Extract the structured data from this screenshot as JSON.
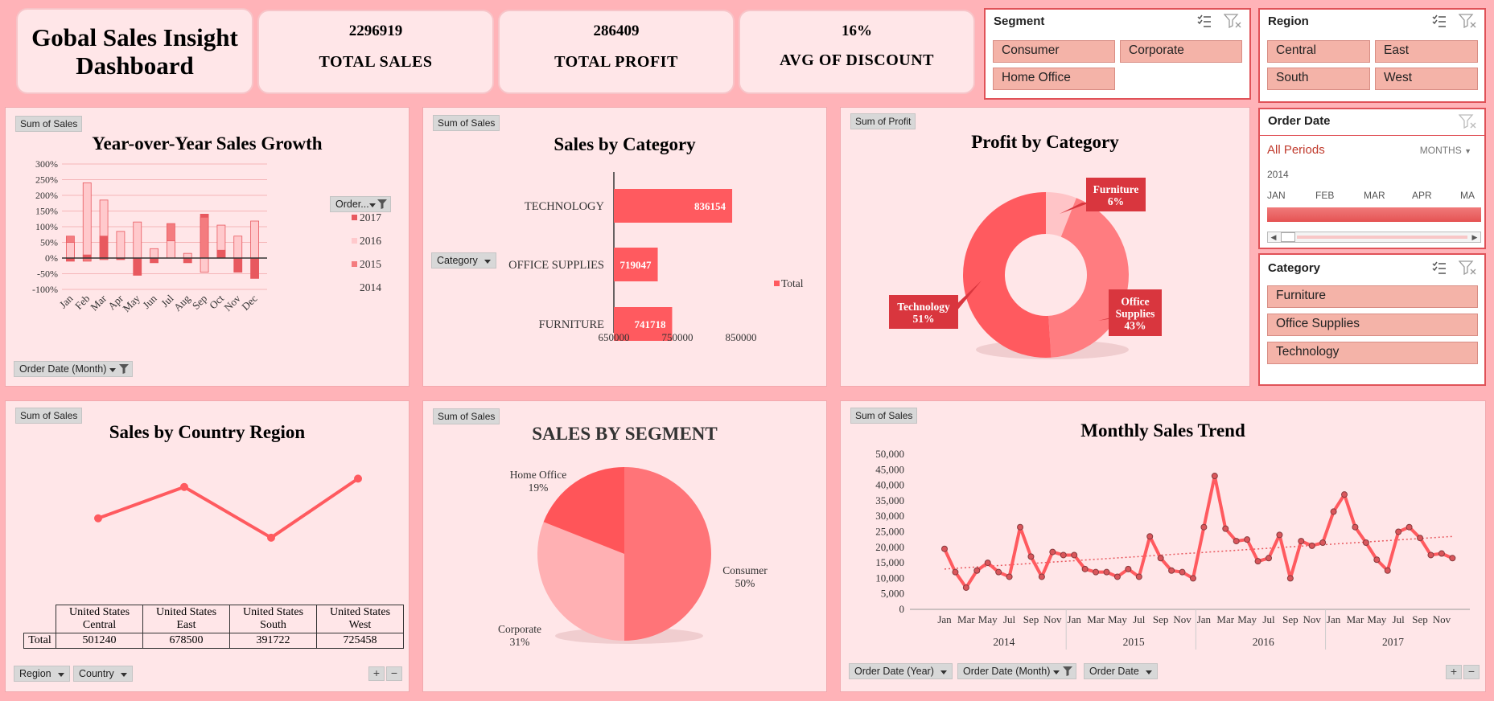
{
  "header": {
    "title_line1": "Gobal Sales Insight",
    "title_line2": "Dashboard",
    "kpis": [
      {
        "value": "2296919",
        "label": "TOTAL SALES"
      },
      {
        "value": "286409",
        "label": "TOTAL PROFIT"
      },
      {
        "value": "16%",
        "label": "AVG OF DISCOUNT"
      }
    ]
  },
  "slicers": {
    "segment": {
      "title": "Segment",
      "items": [
        "Consumer",
        "Corporate",
        "Home Office"
      ]
    },
    "region": {
      "title": "Region",
      "items": [
        "Central",
        "East",
        "South",
        "West"
      ]
    },
    "order_date": {
      "title": "Order Date",
      "period": "All Periods",
      "unit": "MONTHS",
      "year": "2014",
      "months": [
        "JAN",
        "FEB",
        "MAR",
        "APR",
        "MA"
      ]
    },
    "category": {
      "title": "Category",
      "items": [
        "Furniture",
        "Office Supplies",
        "Technology"
      ]
    }
  },
  "chips": {
    "sum_sales": "Sum of Sales",
    "sum_profit": "Sum of Profit"
  },
  "filters": {
    "order_month_legend": "Order...",
    "order_date_month": "Order Date (Month)",
    "category": "Category",
    "region": "Region",
    "country": "Country",
    "order_date_year": "Order Date (Year)",
    "order_date_month2": "Order Date (Month)",
    "order_date": "Order Date"
  },
  "colors": {
    "accent": "#ff5a5f",
    "accent_light": "#ffb3b8",
    "accent_dark": "#d9363e",
    "panel_bg": "#ffe6e8"
  },
  "chart_data": [
    {
      "id": "yoy",
      "type": "bar",
      "title": "Year-over-Year Sales Growth",
      "categories": [
        "Jan",
        "Feb",
        "Mar",
        "Apr",
        "May",
        "Jun",
        "Jul",
        "Aug",
        "Sep",
        "Oct",
        "Nov",
        "Dec"
      ],
      "ylim": [
        -100,
        300
      ],
      "yticks": [
        "300%",
        "250%",
        "200%",
        "150%",
        "100%",
        "50%",
        "0%",
        "-50%",
        "-100%"
      ],
      "series": [
        {
          "name": "2017",
          "values": [
            -10,
            10,
            70,
            -5,
            -55,
            -15,
            0,
            -15,
            140,
            25,
            -45,
            -65
          ]
        },
        {
          "name": "2016",
          "values": [
            50,
            240,
            185,
            85,
            115,
            30,
            55,
            15,
            -45,
            105,
            70,
            118
          ]
        },
        {
          "name": "2015",
          "values": [
            70,
            -10,
            -5,
            0,
            0,
            0,
            110,
            0,
            130,
            0,
            0,
            0
          ]
        },
        {
          "name": "2014",
          "values": [
            0,
            0,
            0,
            0,
            0,
            0,
            0,
            0,
            0,
            0,
            0,
            0
          ]
        }
      ]
    },
    {
      "id": "category_sales",
      "type": "bar",
      "orientation": "horizontal",
      "title": "Sales by Category",
      "categories": [
        "TECHNOLOGY",
        "OFFICE SUPPLIES",
        "FURNITURE"
      ],
      "values": [
        836154,
        719047,
        741718
      ],
      "xlim": [
        650000,
        850000
      ],
      "xticks": [
        "650000",
        "750000",
        "850000"
      ],
      "legend": "Total"
    },
    {
      "id": "profit_category",
      "type": "pie",
      "title": "Profit by Category",
      "labels": [
        "Furniture",
        "Office Supplies",
        "Technology"
      ],
      "values": [
        6,
        43,
        51
      ],
      "label_text": [
        "Furniture\n6%",
        "Office\nSupplies\n43%",
        "Technology\n51%"
      ]
    },
    {
      "id": "country_region",
      "type": "line",
      "title": "Sales by Country Region",
      "categories": [
        "United States Central",
        "United States East",
        "United States South",
        "United States West"
      ],
      "cat_line1": [
        "United States",
        "United States",
        "United States",
        "United States"
      ],
      "cat_line2": [
        "Central",
        "East",
        "South",
        "West"
      ],
      "values": [
        501240,
        678500,
        391722,
        725458
      ],
      "value_text": [
        "501240",
        "678500",
        "391722",
        "725458"
      ],
      "row_label": "Total"
    },
    {
      "id": "segment",
      "type": "pie",
      "title": "SALES BY SEGMENT",
      "labels": [
        "Consumer",
        "Corporate",
        "Home Office"
      ],
      "values": [
        50,
        31,
        19
      ],
      "pct_text": [
        "50%",
        "31%",
        "19%"
      ]
    },
    {
      "id": "monthly",
      "type": "line",
      "title": "Monthly Sales Trend",
      "ylim": [
        0,
        50000
      ],
      "yticks": [
        "50,000",
        "45,000",
        "40,000",
        "35,000",
        "30,000",
        "25,000",
        "20,000",
        "15,000",
        "10,000",
        "5,000",
        "0"
      ],
      "years": [
        "2014",
        "2015",
        "2016",
        "2017"
      ],
      "month_ticks": [
        "Jan",
        "Mar",
        "May",
        "Jul",
        "Sep",
        "Nov"
      ],
      "values": [
        19500,
        12000,
        7000,
        12500,
        15000,
        12000,
        10500,
        26500,
        17000,
        10500,
        18500,
        17500,
        17500,
        13000,
        12000,
        12000,
        10500,
        13000,
        10500,
        23500,
        16500,
        12500,
        12000,
        10000,
        26500,
        43000,
        26000,
        22000,
        22500,
        15500,
        16500,
        24000,
        10000,
        22000,
        20500,
        21500,
        31500,
        37000,
        26500,
        21500,
        16000,
        12500,
        25000,
        26500,
        23000,
        17500,
        18000,
        16500
      ],
      "trendline": [
        13000,
        23500
      ]
    }
  ]
}
